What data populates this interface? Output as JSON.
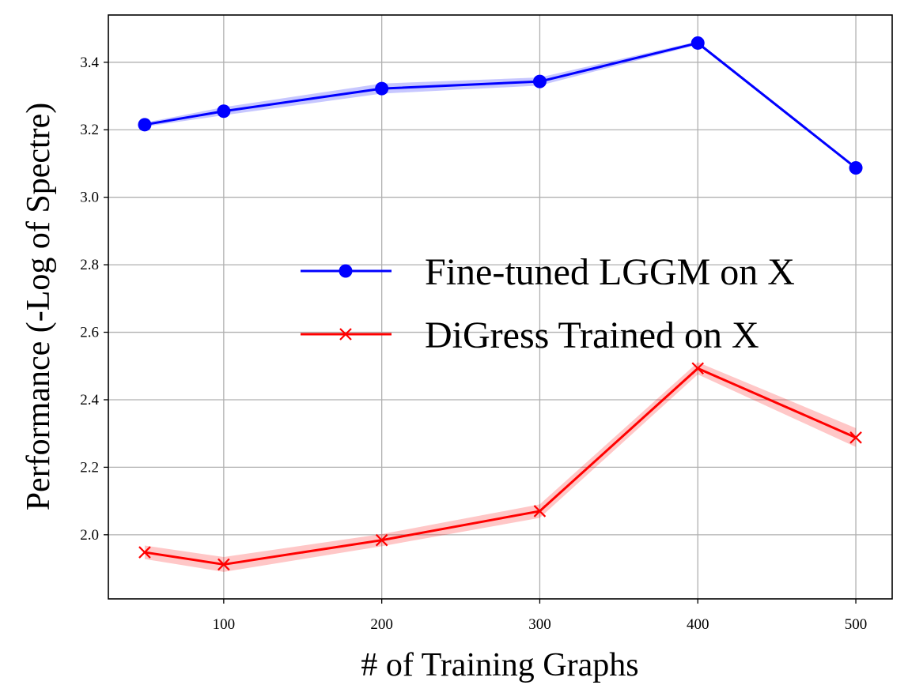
{
  "chart_data": {
    "type": "line",
    "title": "",
    "xlabel": "# of Training Graphs",
    "ylabel": "Performance (-Log of Spectre)",
    "xlim": [
      27,
      523
    ],
    "ylim": [
      1.81,
      3.54
    ],
    "xticks": [
      100,
      200,
      300,
      400,
      500
    ],
    "yticks": [
      2.0,
      2.2,
      2.4,
      2.6,
      2.8,
      3.0,
      3.2,
      3.4
    ],
    "ytick_labels": [
      "2.0",
      "2.2",
      "2.4",
      "2.6",
      "2.8",
      "3.0",
      "3.2",
      "3.4"
    ],
    "x": [
      50,
      100,
      200,
      300,
      400,
      500
    ],
    "grid": true,
    "legend_position": "center-right",
    "series": [
      {
        "name": "Fine-tuned LGGM on X",
        "color": "#0000ff",
        "marker": "circle",
        "values": [
          3.215,
          3.255,
          3.322,
          3.343,
          3.457,
          3.087
        ],
        "band": [
          0.006,
          0.012,
          0.015,
          0.012,
          0.005,
          0.005
        ]
      },
      {
        "name": "DiGress Trained on X",
        "color": "#ff0000",
        "marker": "x",
        "values": [
          1.948,
          1.912,
          1.984,
          2.07,
          2.493,
          2.288
        ],
        "band": [
          0.02,
          0.022,
          0.018,
          0.02,
          0.018,
          0.028
        ]
      }
    ]
  }
}
